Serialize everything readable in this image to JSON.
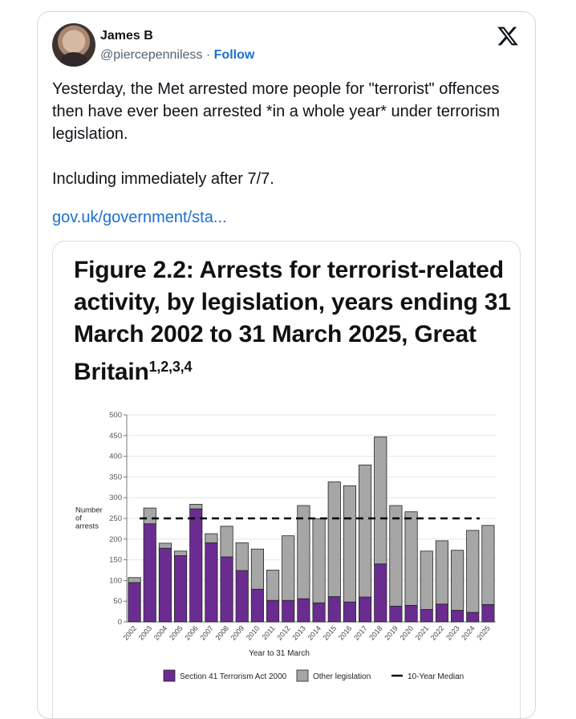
{
  "tweet": {
    "author_name": "James B",
    "handle": "@piercepenniless",
    "separator": "·",
    "follow_label": "Follow",
    "text": "Yesterday, the Met arrested more people for \"terrorist\" offences then have ever been arrested *in a whole year* under terrorism legislation.\n\nIncluding immediately after 7/7.",
    "link_text": "gov.uk/government/sta...",
    "platform_icon": "x-logo-icon"
  },
  "figure": {
    "title": "Figure 2.2: Arrests for terrorist-related activity, by legislation, years ending 31 March 2002 to 31 March 2025, Great Britain",
    "title_superscript": "1,2,3,4"
  },
  "chart_data": {
    "type": "bar",
    "stacked": true,
    "xlabel": "Year to 31 March",
    "ylabel": "Number\nof\narrests",
    "ylim": [
      0,
      500
    ],
    "yticks": [
      0,
      50,
      100,
      150,
      200,
      250,
      300,
      350,
      400,
      450,
      500
    ],
    "grid": true,
    "legend_position": "bottom",
    "categories": [
      "2002",
      "2003",
      "2004",
      "2005",
      "2006",
      "2007",
      "2008",
      "2009",
      "2010",
      "2011",
      "2012",
      "2013",
      "2014",
      "2015",
      "2016",
      "2017",
      "2018",
      "2019",
      "2020",
      "2021",
      "2022",
      "2023",
      "2024",
      "2025"
    ],
    "series": [
      {
        "name": "Section 41 Terrorism Act 2000",
        "color": "#6b2c91",
        "values": [
          95,
          237,
          178,
          160,
          273,
          191,
          157,
          124,
          79,
          52,
          52,
          56,
          46,
          61,
          48,
          60,
          140,
          38,
          40,
          30,
          43,
          28,
          23,
          42
        ]
      },
      {
        "name": "Other legislation",
        "color": "#a6a6a6",
        "values": [
          12,
          38,
          12,
          11,
          11,
          22,
          74,
          67,
          97,
          73,
          156,
          225,
          203,
          277,
          281,
          319,
          307,
          243,
          226,
          141,
          153,
          145,
          198,
          191
        ]
      }
    ],
    "reference_line": {
      "name": "10-Year Median",
      "value": 250,
      "style": "dashed",
      "color": "#000000"
    }
  }
}
